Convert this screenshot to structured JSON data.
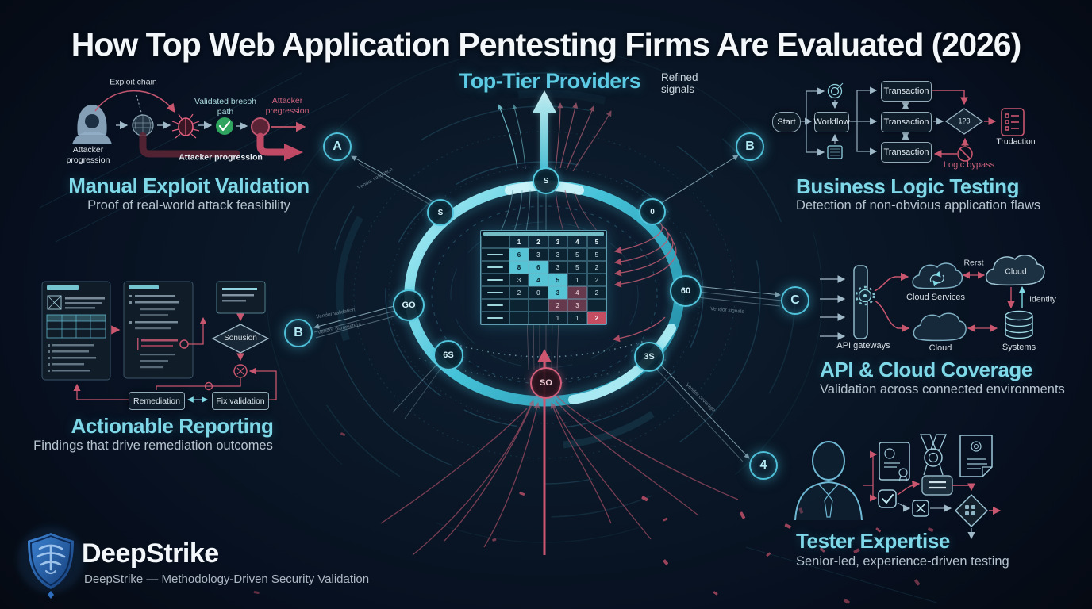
{
  "title": "How Top Web Application Pentesting Firms Are Evaluated (2026)",
  "center": {
    "heading": "Top-Tier Providers",
    "note": "Refined signals",
    "ring_nodes": [
      {
        "label": "S"
      },
      {
        "label": "S"
      },
      {
        "label": "0"
      },
      {
        "label": "GO"
      },
      {
        "label": "60"
      },
      {
        "label": "6S"
      },
      {
        "label": "3S"
      },
      {
        "label": "SO"
      }
    ],
    "badges": [
      {
        "label": "A"
      },
      {
        "label": "B"
      },
      {
        "label": "B"
      },
      {
        "label": "C"
      },
      {
        "label": "4"
      }
    ],
    "connector_labels": [
      "Vendor validation",
      "Vendor validation",
      "Vendor parameters",
      "Vendor signals",
      "Vendor coverage"
    ],
    "table": {
      "col_headers": [
        "1",
        "2",
        "3",
        "4",
        "5"
      ],
      "rows": [
        [
          "6",
          "3",
          "3",
          "5",
          "5"
        ],
        [
          "8",
          "6",
          "3",
          "5",
          "2"
        ],
        [
          "3",
          "4",
          "5",
          "1",
          "2"
        ],
        [
          "2",
          "0",
          "3",
          "4",
          "2"
        ],
        [
          "",
          "",
          "2",
          "3",
          ""
        ],
        [
          "",
          "",
          "1",
          "1",
          "2"
        ]
      ],
      "highlight_cyan": [
        [
          0,
          0
        ],
        [
          1,
          0
        ],
        [
          1,
          1
        ],
        [
          2,
          1
        ],
        [
          2,
          2
        ],
        [
          3,
          2
        ]
      ],
      "highlight_pink": [
        [
          3,
          3
        ],
        [
          4,
          2
        ],
        [
          4,
          3
        ]
      ],
      "highlight_red": [
        [
          5,
          4
        ]
      ]
    }
  },
  "sections": {
    "manual": {
      "heading": "Manual Exploit Validation",
      "subtitle": "Proof of real-world attack feasibility",
      "labels": {
        "exploit_chain": "Exploit chain",
        "validated": "Validated bresoh path",
        "attacker_red": "Attacker pregression",
        "attacker_left": "Attacker progression",
        "attacker_bottom": "Attacker progression"
      }
    },
    "business": {
      "heading": "Business Logic Testing",
      "subtitle": "Detection of non-obvious application flaws",
      "labels": {
        "start": "Start",
        "workflow": "Workflow",
        "transaction": "Transaction",
        "diamond": "1?3",
        "transaction_out": "Trudaction",
        "logic_bypass": "Logic bypass"
      }
    },
    "reporting": {
      "heading": "Actionable Reporting",
      "subtitle": "Findings that drive remediation outcomes",
      "labels": {
        "diamond": "Sonusion",
        "remediation": "Remediation",
        "fix_validation": "Fix validation"
      }
    },
    "api_cloud": {
      "heading": "API & Cloud Coverage",
      "subtitle": "Validation across connected environments",
      "labels": {
        "api_gateways": "API gateways",
        "cloud_services": "Cloud Services",
        "rest": "Rerst",
        "cloud_top": "Cloud",
        "identity": "Identity",
        "systems": "Systems",
        "cloud_bottom": "Cloud"
      }
    },
    "tester": {
      "heading": "Tester Expertise",
      "subtitle": "Senior-led, experience-driven testing"
    }
  },
  "footer": {
    "brand": "DeepStrike",
    "tagline": "DeepStrike — Methodology-Driven Security Validation"
  },
  "colors": {
    "accent_cyan": "#7ed8e8",
    "accent_red": "#c8566e",
    "title_white": "#f3f7fa",
    "subtitle_gray": "#b5c3ce"
  }
}
